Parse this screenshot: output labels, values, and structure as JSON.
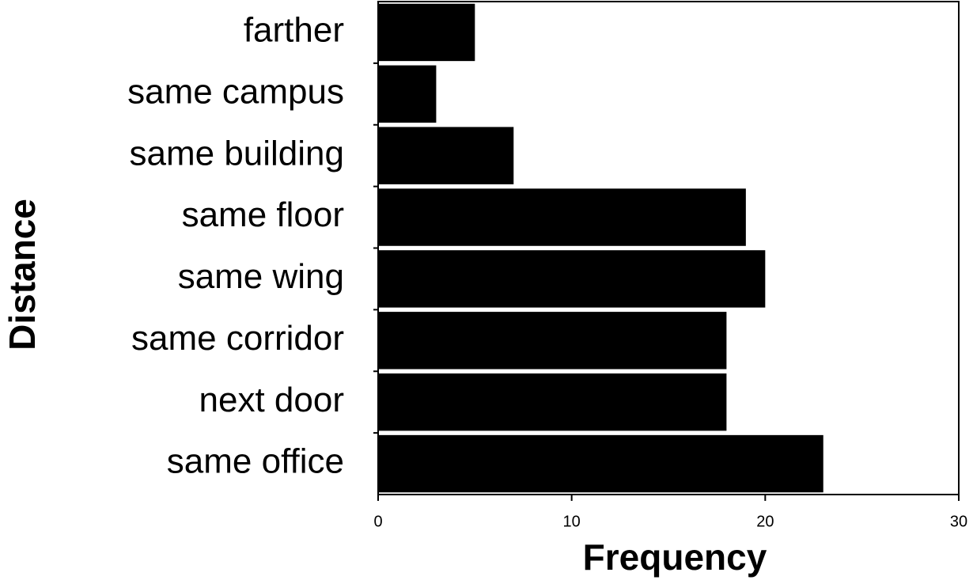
{
  "chart_data": {
    "type": "barh",
    "categories": [
      "farther",
      "same campus",
      "same building",
      "same floor",
      "same wing",
      "same corridor",
      "next door",
      "same office"
    ],
    "values": [
      5,
      3,
      7,
      19,
      20,
      18,
      18,
      23
    ],
    "color": "#000000",
    "x_label": "Frequency",
    "y_label": "Distance",
    "xlim": [
      0,
      30
    ],
    "xticks": [
      0,
      10,
      20,
      30
    ],
    "grid": false
  }
}
